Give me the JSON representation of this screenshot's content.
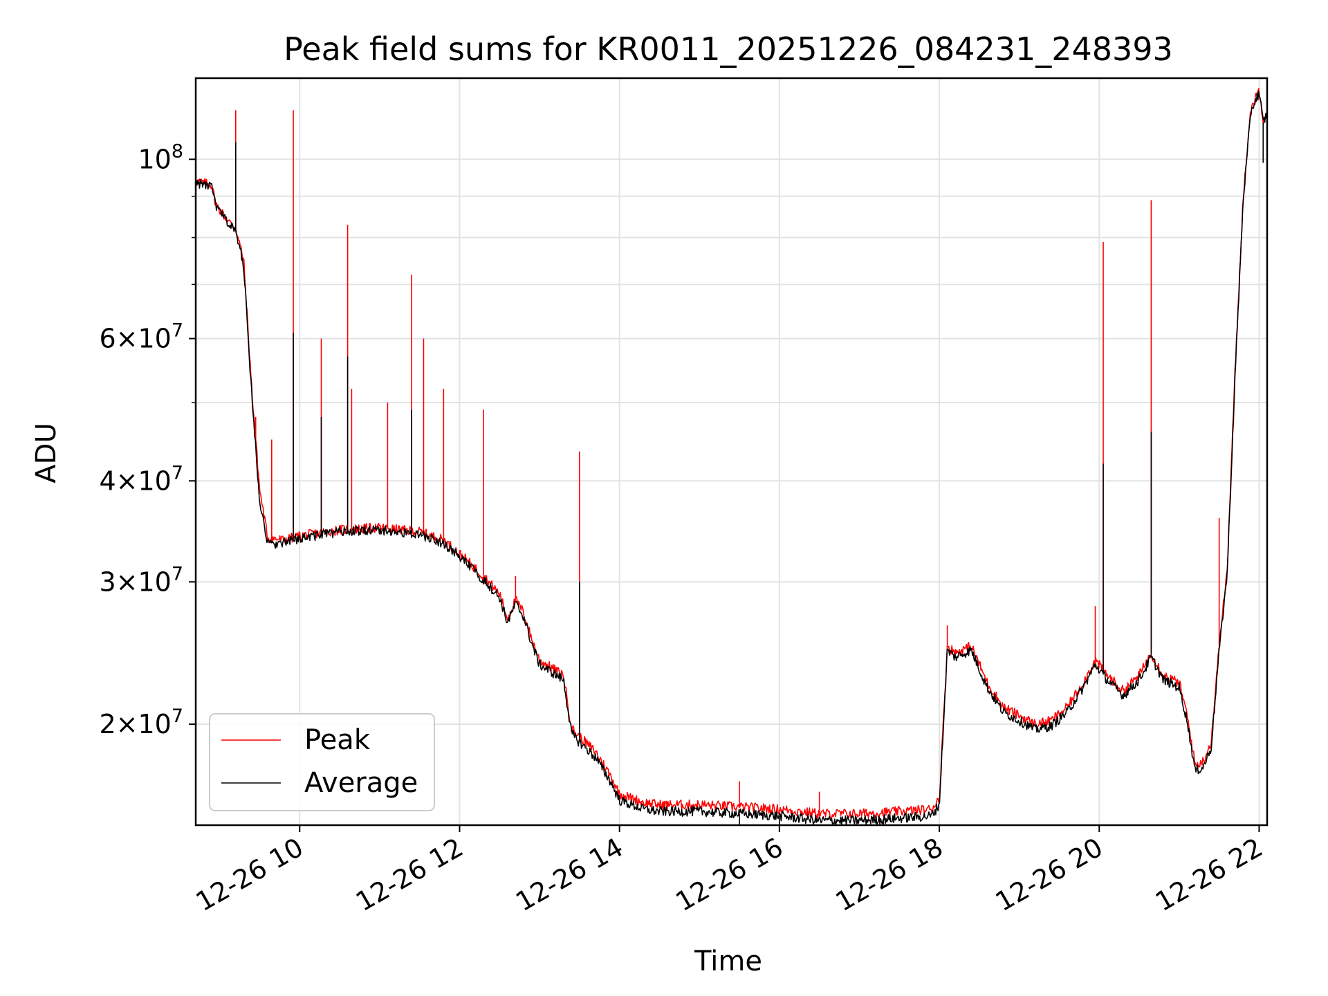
{
  "chart_data": {
    "type": "line",
    "title": "Peak field sums for KR0011_20251226_084231_248393",
    "xlabel": "Time",
    "ylabel": "ADU",
    "yscale": "log",
    "grid": true,
    "legend_position": "lower-left",
    "x_unit": "hours on 2025-12-26",
    "xlim": [
      8.7,
      22.1
    ],
    "ylim": [
      15000000,
      126000000
    ],
    "x_ticks": [
      {
        "value": 10,
        "label": "12-26 10"
      },
      {
        "value": 12,
        "label": "12-26 12"
      },
      {
        "value": 14,
        "label": "12-26 14"
      },
      {
        "value": 16,
        "label": "12-26 16"
      },
      {
        "value": 18,
        "label": "12-26 18"
      },
      {
        "value": 20,
        "label": "12-26 20"
      },
      {
        "value": 22,
        "label": "12-26 22"
      }
    ],
    "y_ticks": [
      {
        "value": 20000000,
        "mantissa": "2",
        "base": "10",
        "exp": "7",
        "times": "×"
      },
      {
        "value": 30000000,
        "mantissa": "3",
        "base": "10",
        "exp": "7",
        "times": "×"
      },
      {
        "value": 40000000,
        "mantissa": "4",
        "base": "10",
        "exp": "7",
        "times": "×"
      },
      {
        "value": 60000000,
        "mantissa": "6",
        "base": "10",
        "exp": "7",
        "times": "×"
      },
      {
        "value": 100000000,
        "mantissa": "",
        "base": "10",
        "exp": "8",
        "times": ""
      }
    ],
    "y_minor_ticks": [
      50000000,
      70000000,
      80000000,
      90000000
    ],
    "series": [
      {
        "name": "Peak",
        "color": "#ff0000",
        "x": [
          8.7,
          8.9,
          8.95,
          9.1,
          9.2,
          9.3,
          9.4,
          9.5,
          9.6,
          9.8,
          10.0,
          10.5,
          11.0,
          11.5,
          11.8,
          12.0,
          12.3,
          12.5,
          12.6,
          12.7,
          12.8,
          12.9,
          13.0,
          13.3,
          13.4,
          13.45,
          13.7,
          13.9,
          14.0,
          14.3,
          14.5,
          15.0,
          15.5,
          16.0,
          16.5,
          17.0,
          17.5,
          17.9,
          18.0,
          18.1,
          18.2,
          18.4,
          18.6,
          18.8,
          19.0,
          19.2,
          19.4,
          19.6,
          19.8,
          19.95,
          20.1,
          20.3,
          20.5,
          20.65,
          20.8,
          21.0,
          21.1,
          21.2,
          21.3,
          21.4,
          21.5,
          21.6,
          21.7,
          21.8,
          21.9,
          22.0,
          22.05,
          22.1
        ],
        "y": [
          94000000,
          93000000,
          88000000,
          84000000,
          82000000,
          75000000,
          52000000,
          39000000,
          34000000,
          33800000,
          34200000,
          34800000,
          35000000,
          34600000,
          33800000,
          32500000,
          30500000,
          29000000,
          27000000,
          28500000,
          27500000,
          25500000,
          24000000,
          23000000,
          19800000,
          19500000,
          18500000,
          17200000,
          16400000,
          16000000,
          15900000,
          15900000,
          15800000,
          15700000,
          15500000,
          15500000,
          15600000,
          15700000,
          16200000,
          25000000,
          24500000,
          25000000,
          22500000,
          21000000,
          20500000,
          20000000,
          20200000,
          21000000,
          22500000,
          24000000,
          23000000,
          22000000,
          23000000,
          24500000,
          23000000,
          22500000,
          20500000,
          17800000,
          18000000,
          19000000,
          25000000,
          31000000,
          55000000,
          90000000,
          116000000,
          122000000,
          112000000,
          115000000
        ],
        "spikes": [
          {
            "x": 9.2,
            "y": 115000000
          },
          {
            "x": 9.45,
            "y": 48000000
          },
          {
            "x": 9.65,
            "y": 45000000
          },
          {
            "x": 9.92,
            "y": 115000000
          },
          {
            "x": 10.27,
            "y": 60000000
          },
          {
            "x": 10.6,
            "y": 83000000
          },
          {
            "x": 10.65,
            "y": 52000000
          },
          {
            "x": 11.1,
            "y": 50000000
          },
          {
            "x": 11.4,
            "y": 72000000
          },
          {
            "x": 11.55,
            "y": 60000000
          },
          {
            "x": 11.8,
            "y": 52000000
          },
          {
            "x": 12.3,
            "y": 49000000
          },
          {
            "x": 12.7,
            "y": 30500000
          },
          {
            "x": 13.5,
            "y": 43500000
          },
          {
            "x": 15.5,
            "y": 17000000
          },
          {
            "x": 16.5,
            "y": 16500000
          },
          {
            "x": 18.1,
            "y": 26500000
          },
          {
            "x": 19.95,
            "y": 28000000
          },
          {
            "x": 20.05,
            "y": 79000000
          },
          {
            "x": 20.65,
            "y": 89000000
          },
          {
            "x": 21.5,
            "y": 36000000
          }
        ]
      },
      {
        "name": "Average",
        "color": "#000000",
        "x": [
          8.7,
          8.9,
          8.95,
          9.1,
          9.2,
          9.3,
          9.4,
          9.5,
          9.6,
          9.8,
          10.0,
          10.5,
          11.0,
          11.5,
          11.8,
          12.0,
          12.3,
          12.5,
          12.6,
          12.7,
          12.8,
          12.9,
          13.0,
          13.3,
          13.4,
          13.45,
          13.7,
          13.9,
          14.0,
          14.3,
          14.5,
          15.0,
          15.5,
          16.0,
          16.5,
          17.0,
          17.5,
          17.9,
          18.0,
          18.1,
          18.2,
          18.4,
          18.6,
          18.8,
          19.0,
          19.2,
          19.4,
          19.6,
          19.8,
          19.95,
          20.1,
          20.3,
          20.5,
          20.65,
          20.8,
          21.0,
          21.1,
          21.2,
          21.3,
          21.4,
          21.5,
          21.6,
          21.7,
          21.8,
          21.9,
          22.0,
          22.05,
          22.1
        ],
        "y": [
          93500000,
          92500000,
          87500000,
          83500000,
          81500000,
          74000000,
          51000000,
          38000000,
          33400000,
          33500000,
          34000000,
          34600000,
          34800000,
          34300000,
          33500000,
          32200000,
          30200000,
          28700000,
          26700000,
          28200000,
          27200000,
          25200000,
          23700000,
          22700000,
          19500000,
          19200000,
          18200000,
          16900000,
          16100000,
          15700000,
          15600000,
          15600000,
          15500000,
          15400000,
          15200000,
          15200000,
          15300000,
          15400000,
          15900000,
          24700000,
          24200000,
          24700000,
          22200000,
          20700000,
          20200000,
          19700000,
          19900000,
          20700000,
          22200000,
          23700000,
          22700000,
          21700000,
          22700000,
          24200000,
          22700000,
          22200000,
          20200000,
          17500000,
          17700000,
          18700000,
          24700000,
          30700000,
          54000000,
          89000000,
          115000000,
          121000000,
          111000000,
          114000000
        ],
        "spikes": [
          {
            "x": 9.2,
            "y": 105000000
          },
          {
            "x": 9.92,
            "y": 61000000
          },
          {
            "x": 10.27,
            "y": 48000000
          },
          {
            "x": 10.6,
            "y": 57000000
          },
          {
            "x": 11.4,
            "y": 49000000
          },
          {
            "x": 13.5,
            "y": 30000000
          },
          {
            "x": 20.05,
            "y": 42000000
          },
          {
            "x": 20.65,
            "y": 46000000
          },
          {
            "x": 22.05,
            "y": 99000000
          }
        ],
        "dips": [
          {
            "x": 15.5,
            "y": 14800000
          },
          {
            "x": 16.0,
            "y": 14700000
          },
          {
            "x": 17.3,
            "y": 14700000
          }
        ]
      }
    ]
  }
}
